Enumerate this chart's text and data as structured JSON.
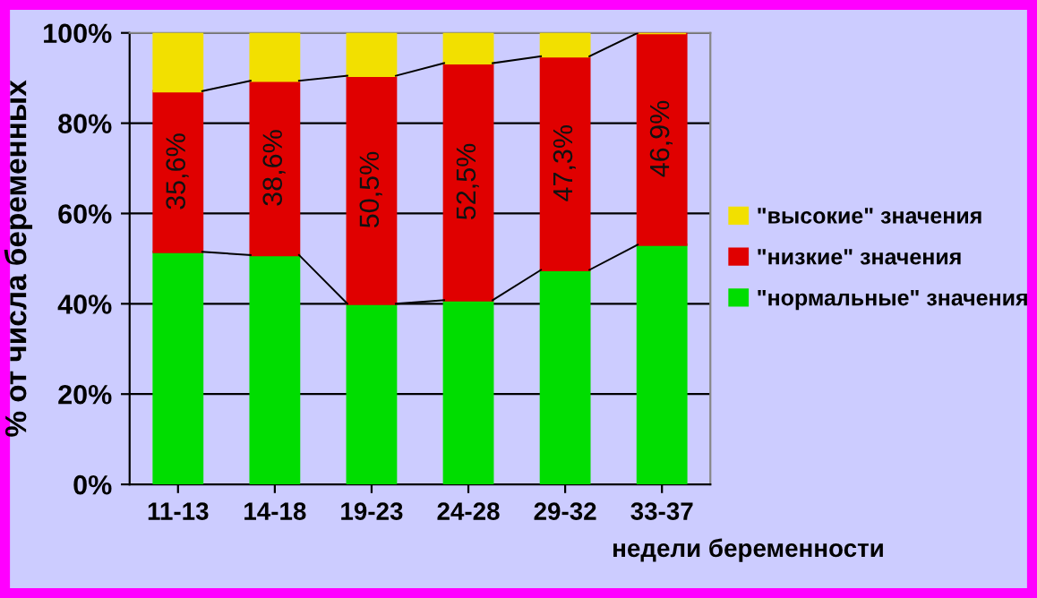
{
  "chart_data": {
    "type": "bar",
    "stacked": true,
    "xlabel": "недели беременности",
    "ylabel": "% от числа беременных",
    "categories": [
      "11-13",
      "14-18",
      "19-23",
      "24-28",
      "29-32",
      "33-37"
    ],
    "series": [
      {
        "name": "\"нормальные\" значения",
        "color": "#00dd00",
        "values": [
          51.5,
          50.8,
          40.0,
          40.8,
          47.5,
          53.1
        ]
      },
      {
        "name": "\"низкие\" значения",
        "color": "#e00000",
        "values": [
          35.6,
          38.6,
          50.5,
          52.5,
          47.3,
          46.9
        ],
        "value_labels": [
          "35,6%",
          "38,6%",
          "50,5%",
          "52,5%",
          "47,3%",
          "46,9%"
        ]
      },
      {
        "name": "\"высокие\" значения",
        "color": "#f2e000",
        "values": [
          12.9,
          10.6,
          9.5,
          6.7,
          5.2,
          0
        ]
      }
    ],
    "ylim": [
      0,
      100
    ],
    "yticks": [
      {
        "value": 0,
        "label": "0%"
      },
      {
        "value": 20,
        "label": "20%"
      },
      {
        "value": 40,
        "label": "40%"
      },
      {
        "value": 60,
        "label": "60%"
      },
      {
        "value": 80,
        "label": "80%"
      },
      {
        "value": 100,
        "label": "100%"
      }
    ],
    "grid": "y",
    "legend": "right"
  }
}
